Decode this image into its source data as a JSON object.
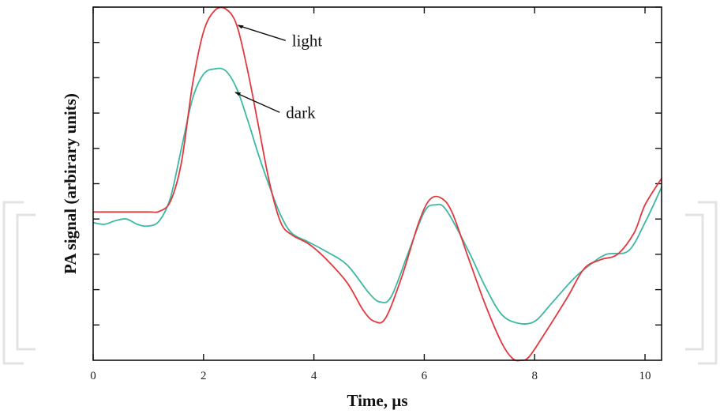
{
  "chart_data": {
    "type": "line",
    "xlabel": "Time, µs",
    "ylabel": "PA signal (arbirary units)",
    "xlim": [
      0,
      10.3
    ],
    "ylim": [
      0,
      10
    ],
    "x_ticks": [
      0,
      2,
      4,
      6,
      8,
      10
    ],
    "y_ticks": [
      1,
      2,
      3,
      4,
      5,
      6,
      7,
      8,
      9,
      10
    ],
    "y_tick_labels_visible": false,
    "grid": false,
    "legend": "none",
    "series": [
      {
        "name": "light",
        "color": "#e0393e",
        "points": [
          [
            0,
            4.2
          ],
          [
            0.5,
            4.2
          ],
          [
            1.0,
            4.2
          ],
          [
            1.2,
            4.22
          ],
          [
            1.4,
            4.5
          ],
          [
            1.6,
            5.6
          ],
          [
            1.8,
            7.8
          ],
          [
            2.0,
            9.3
          ],
          [
            2.2,
            9.9
          ],
          [
            2.4,
            9.95
          ],
          [
            2.6,
            9.5
          ],
          [
            2.8,
            8.2
          ],
          [
            3.0,
            6.6
          ],
          [
            3.2,
            5.0
          ],
          [
            3.4,
            3.9
          ],
          [
            3.6,
            3.55
          ],
          [
            3.9,
            3.3
          ],
          [
            4.2,
            2.9
          ],
          [
            4.6,
            2.2
          ],
          [
            4.9,
            1.4
          ],
          [
            5.1,
            1.1
          ],
          [
            5.3,
            1.2
          ],
          [
            5.6,
            2.4
          ],
          [
            5.9,
            3.9
          ],
          [
            6.1,
            4.55
          ],
          [
            6.3,
            4.6
          ],
          [
            6.5,
            4.2
          ],
          [
            6.8,
            2.9
          ],
          [
            7.1,
            1.6
          ],
          [
            7.4,
            0.5
          ],
          [
            7.6,
            0.05
          ],
          [
            7.75,
            0.0
          ],
          [
            7.9,
            0.1
          ],
          [
            8.2,
            0.8
          ],
          [
            8.6,
            1.8
          ],
          [
            8.9,
            2.6
          ],
          [
            9.2,
            2.85
          ],
          [
            9.5,
            3.0
          ],
          [
            9.8,
            3.6
          ],
          [
            10.0,
            4.4
          ],
          [
            10.3,
            5.15
          ]
        ]
      },
      {
        "name": "dark",
        "color": "#3bb9a3",
        "points": [
          [
            0,
            3.9
          ],
          [
            0.2,
            3.85
          ],
          [
            0.4,
            3.95
          ],
          [
            0.6,
            4.0
          ],
          [
            0.8,
            3.85
          ],
          [
            1.0,
            3.8
          ],
          [
            1.2,
            3.95
          ],
          [
            1.4,
            4.6
          ],
          [
            1.6,
            6.0
          ],
          [
            1.8,
            7.4
          ],
          [
            2.0,
            8.1
          ],
          [
            2.2,
            8.25
          ],
          [
            2.4,
            8.2
          ],
          [
            2.6,
            7.7
          ],
          [
            2.8,
            6.8
          ],
          [
            3.0,
            5.8
          ],
          [
            3.2,
            4.9
          ],
          [
            3.4,
            4.1
          ],
          [
            3.6,
            3.6
          ],
          [
            3.9,
            3.35
          ],
          [
            4.2,
            3.1
          ],
          [
            4.6,
            2.7
          ],
          [
            5.0,
            1.9
          ],
          [
            5.2,
            1.65
          ],
          [
            5.4,
            1.8
          ],
          [
            5.7,
            3.0
          ],
          [
            6.0,
            4.2
          ],
          [
            6.2,
            4.4
          ],
          [
            6.4,
            4.25
          ],
          [
            6.8,
            3.1
          ],
          [
            7.1,
            2.1
          ],
          [
            7.4,
            1.3
          ],
          [
            7.7,
            1.05
          ],
          [
            8.0,
            1.1
          ],
          [
            8.3,
            1.6
          ],
          [
            8.7,
            2.3
          ],
          [
            9.0,
            2.7
          ],
          [
            9.3,
            3.0
          ],
          [
            9.7,
            3.1
          ],
          [
            10.0,
            3.9
          ],
          [
            10.3,
            4.9
          ]
        ]
      }
    ],
    "annotations": [
      {
        "text": "light",
        "series": "light",
        "at": [
          2.6,
          9.5
        ]
      },
      {
        "text": "dark",
        "series": "dark",
        "at": [
          2.55,
          7.6
        ]
      }
    ]
  }
}
